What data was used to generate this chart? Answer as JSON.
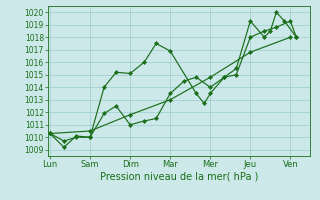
{
  "xlabel": "Pression niveau de la mer( hPa )",
  "background_color": "#cce8e8",
  "grid_color": "#99cccc",
  "line_color": "#1a6e1a",
  "ylim": [
    1008.5,
    1020.5
  ],
  "yticks": [
    1009,
    1010,
    1011,
    1012,
    1013,
    1014,
    1015,
    1016,
    1017,
    1018,
    1019,
    1020
  ],
  "xtick_labels": [
    "Lun",
    "Sam",
    "Dim",
    "Mar",
    "Mer",
    "Jeu",
    "Ven"
  ],
  "xtick_positions": [
    0,
    1,
    2,
    3,
    4,
    5,
    6
  ],
  "xlim": [
    -0.05,
    6.5
  ],
  "series1_x": [
    0.0,
    0.35,
    0.65,
    1.0,
    1.35,
    1.65,
    2.0,
    2.35,
    2.65,
    3.0,
    3.65,
    3.85,
    4.0,
    4.35,
    4.65,
    5.0,
    5.35,
    5.5,
    5.65,
    5.85,
    6.15
  ],
  "series1_y": [
    1010.3,
    1009.7,
    1010.0,
    1010.0,
    1014.0,
    1015.2,
    1015.1,
    1016.0,
    1017.5,
    1016.9,
    1013.5,
    1012.7,
    1013.5,
    1014.8,
    1015.5,
    1019.3,
    1018.0,
    1018.5,
    1020.0,
    1019.3,
    1018.0
  ],
  "series2_x": [
    0.0,
    0.35,
    0.65,
    1.0,
    1.35,
    1.65,
    2.0,
    2.35,
    2.65,
    3.0,
    3.35,
    3.65,
    4.0,
    4.35,
    4.65,
    5.0,
    5.35,
    5.65,
    6.0,
    6.15
  ],
  "series2_y": [
    1010.3,
    1009.2,
    1010.1,
    1010.0,
    1011.9,
    1012.5,
    1011.0,
    1011.3,
    1011.5,
    1013.5,
    1014.5,
    1014.8,
    1014.0,
    1014.8,
    1015.0,
    1018.0,
    1018.5,
    1018.8,
    1019.3,
    1018.0
  ],
  "series3_x": [
    0.0,
    1.0,
    2.0,
    3.0,
    4.0,
    5.0,
    6.0
  ],
  "series3_y": [
    1010.3,
    1010.5,
    1011.8,
    1013.0,
    1014.8,
    1016.8,
    1018.0
  ]
}
